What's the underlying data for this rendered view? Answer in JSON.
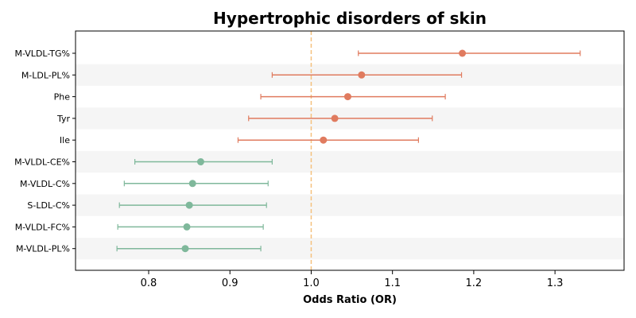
{
  "chart_data": {
    "type": "forest",
    "title": "Hypertrophic disorders of skin",
    "xlabel": "Odds Ratio (OR)",
    "xlim": [
      0.71,
      1.385
    ],
    "xticks": [
      0.8,
      0.9,
      1.0,
      1.1,
      1.2,
      1.3
    ],
    "xtick_labels": [
      "0.8",
      "0.9",
      "1.0",
      "1.1",
      "1.2",
      "1.3"
    ],
    "reference_line": 1.0,
    "reference_line_style": "dashed",
    "alternating_row_shading": true,
    "colors": {
      "risk": "#e07b5f",
      "protective": "#7fb89b",
      "reference_line": "#f5c17e",
      "row_shade": "#f5f5f5"
    },
    "rows": [
      {
        "label": "M-VLDL-TG%",
        "or": 1.186,
        "ci_low": 1.058,
        "ci_high": 1.331,
        "group": "risk"
      },
      {
        "label": "M-LDL-PL%",
        "or": 1.062,
        "ci_low": 0.952,
        "ci_high": 1.185,
        "group": "risk"
      },
      {
        "label": "Phe",
        "or": 1.045,
        "ci_low": 0.938,
        "ci_high": 1.165,
        "group": "risk"
      },
      {
        "label": "Tyr",
        "or": 1.029,
        "ci_low": 0.923,
        "ci_high": 1.149,
        "group": "risk"
      },
      {
        "label": "Ile",
        "or": 1.015,
        "ci_low": 0.91,
        "ci_high": 1.132,
        "group": "risk"
      },
      {
        "label": "M-VLDL-CE%",
        "or": 0.864,
        "ci_low": 0.783,
        "ci_high": 0.952,
        "group": "protective"
      },
      {
        "label": "M-VLDL-C%",
        "or": 0.854,
        "ci_low": 0.77,
        "ci_high": 0.947,
        "group": "protective"
      },
      {
        "label": "S-LDL-C%",
        "or": 0.85,
        "ci_low": 0.764,
        "ci_high": 0.945,
        "group": "protective"
      },
      {
        "label": "M-VLDL-FC%",
        "or": 0.847,
        "ci_low": 0.762,
        "ci_high": 0.941,
        "group": "protective"
      },
      {
        "label": "M-VLDL-PL%",
        "or": 0.845,
        "ci_low": 0.761,
        "ci_high": 0.938,
        "group": "protective"
      }
    ]
  }
}
